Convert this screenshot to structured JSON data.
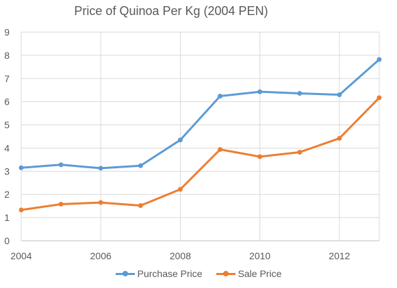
{
  "chart_data": {
    "type": "line",
    "title": "Price of Quinoa Per Kg (2004 PEN)",
    "x": [
      2004,
      2005,
      2006,
      2007,
      2008,
      2009,
      2010,
      2011,
      2012,
      2013
    ],
    "x_ticks": [
      2004,
      2006,
      2008,
      2010,
      2012
    ],
    "xlim": [
      2004,
      2013
    ],
    "ylim": [
      0,
      9
    ],
    "y_ticks": [
      0,
      1,
      2,
      3,
      4,
      5,
      6,
      7,
      8,
      9
    ],
    "xlabel": "",
    "ylabel": "",
    "grid": true,
    "legend_position": "bottom",
    "series": [
      {
        "name": "Purchase Price",
        "color": "#5b9bd5",
        "values": [
          3.15,
          3.28,
          3.13,
          3.24,
          4.35,
          6.24,
          6.43,
          6.36,
          6.3,
          7.82
        ]
      },
      {
        "name": "Sale Price",
        "color": "#ed7d31",
        "values": [
          1.33,
          1.58,
          1.65,
          1.52,
          2.22,
          3.94,
          3.63,
          3.82,
          4.42,
          6.17
        ]
      }
    ]
  }
}
